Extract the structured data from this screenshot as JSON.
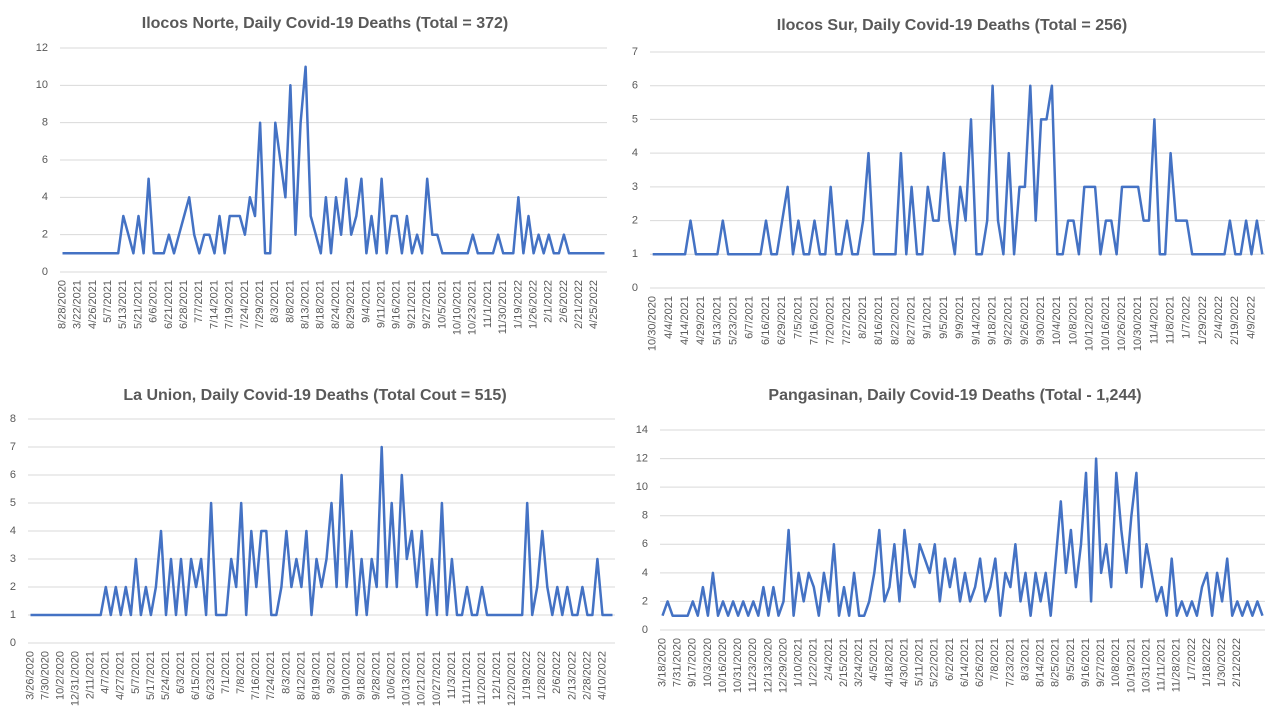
{
  "chart_data": [
    {
      "type": "line",
      "title": "Ilocos Norte, Daily Covid-19 Deaths (Total = 372)",
      "color": "#4472c4",
      "grid": true,
      "ylim": [
        0,
        12
      ],
      "yticks": [
        0,
        2,
        4,
        6,
        8,
        10,
        12
      ],
      "categories": [
        "8/28/2020",
        null,
        null,
        "3/22/2021",
        null,
        null,
        "4/26/2021",
        null,
        null,
        "5/7/2021",
        null,
        null,
        "5/13/2021",
        null,
        null,
        "5/21/2021",
        null,
        null,
        "6/6/2021",
        null,
        null,
        "6/21/2021",
        null,
        null,
        "6/28/2021",
        null,
        null,
        "7/7/2021",
        null,
        null,
        "7/14/2021",
        null,
        null,
        "7/19/2021",
        null,
        null,
        "7/24/2021",
        null,
        null,
        "7/29/2021",
        null,
        null,
        "8/3/2021",
        null,
        null,
        "8/8/2021",
        null,
        null,
        "8/13/2021",
        null,
        null,
        "8/18/2021",
        null,
        null,
        "8/24/2021",
        null,
        null,
        "8/29/2021",
        null,
        null,
        "9/4/2021",
        null,
        null,
        "9/11/2021",
        null,
        null,
        "9/16/2021",
        null,
        null,
        "9/21/2021",
        null,
        null,
        "9/27/2021",
        null,
        null,
        "10/5/2021",
        null,
        null,
        "10/10/2021",
        null,
        null,
        "10/23/2021",
        null,
        null,
        "11/1/2021",
        null,
        null,
        "11/30/2021",
        null,
        null,
        "1/19/2022",
        null,
        null,
        "1/26/2022",
        null,
        null,
        "2/1/2022",
        null,
        null,
        "2/6/2022",
        null,
        null,
        "2/21/2022",
        null,
        null,
        "4/25/2022",
        null,
        null
      ],
      "values": [
        1,
        1,
        1,
        1,
        1,
        1,
        1,
        1,
        1,
        1,
        1,
        1,
        3,
        2,
        1,
        3,
        1,
        5,
        1,
        1,
        1,
        2,
        1,
        2,
        3,
        4,
        2,
        1,
        2,
        2,
        1,
        3,
        1,
        3,
        3,
        3,
        2,
        4,
        3,
        8,
        1,
        1,
        8,
        6,
        4,
        10,
        2,
        8,
        11,
        3,
        2,
        1,
        4,
        1,
        4,
        2,
        5,
        2,
        3,
        5,
        1,
        3,
        1,
        5,
        1,
        3,
        3,
        1,
        3,
        1,
        2,
        1,
        5,
        2,
        2,
        1,
        1,
        1,
        1,
        1,
        1,
        2,
        1,
        1,
        1,
        1,
        2,
        1,
        1,
        1,
        4,
        1,
        3,
        1,
        2,
        1,
        2,
        1,
        1,
        2,
        1,
        1,
        1,
        1,
        1,
        1,
        1,
        1
      ]
    },
    {
      "type": "line",
      "title": "Ilocos Sur, Daily Covid-19 Deaths (Total = 256)",
      "color": "#4472c4",
      "grid": true,
      "ylim": [
        0,
        7
      ],
      "yticks": [
        0,
        1,
        2,
        3,
        4,
        5,
        6,
        7
      ],
      "categories": [
        "10/30/2020",
        null,
        null,
        "4/4/2021",
        null,
        null,
        "4/14/2021",
        null,
        null,
        "4/29/2021",
        null,
        null,
        "5/13/2021",
        null,
        null,
        "5/23/2021",
        null,
        null,
        "6/7/2021",
        null,
        null,
        "6/16/2021",
        null,
        null,
        "6/29/2021",
        null,
        null,
        "7/5/2021",
        null,
        null,
        "7/16/2021",
        null,
        null,
        "7/20/2021",
        null,
        null,
        "7/27/2021",
        null,
        null,
        "8/2/2021",
        null,
        null,
        "8/16/2021",
        null,
        null,
        "8/22/2021",
        null,
        null,
        "8/27/2021",
        null,
        null,
        "9/1/2021",
        null,
        null,
        "9/5/2021",
        null,
        null,
        "9/9/2021",
        null,
        null,
        "9/14/2021",
        null,
        null,
        "9/18/2021",
        null,
        null,
        "9/22/2021",
        null,
        null,
        "9/26/2021",
        null,
        null,
        "9/30/2021",
        null,
        null,
        "10/4/2021",
        null,
        null,
        "10/8/2021",
        null,
        null,
        "10/12/2021",
        null,
        null,
        "10/16/2021",
        null,
        null,
        "10/26/2021",
        null,
        null,
        "10/30/2021",
        null,
        null,
        "11/4/2021",
        null,
        null,
        "11/8/2021",
        null,
        null,
        "1/7/2022",
        null,
        null,
        "1/29/2022",
        null,
        null,
        "2/4/2022",
        null,
        null,
        "2/19/2022",
        null,
        null,
        "4/9/2022",
        null,
        null
      ],
      "values": [
        1,
        1,
        1,
        1,
        1,
        1,
        1,
        2,
        1,
        1,
        1,
        1,
        1,
        2,
        1,
        1,
        1,
        1,
        1,
        1,
        1,
        2,
        1,
        1,
        2,
        3,
        1,
        2,
        1,
        1,
        2,
        1,
        1,
        3,
        1,
        1,
        2,
        1,
        1,
        2,
        4,
        1,
        1,
        1,
        1,
        1,
        4,
        1,
        3,
        1,
        1,
        3,
        2,
        2,
        4,
        2,
        1,
        3,
        2,
        5,
        1,
        1,
        2,
        6,
        2,
        1,
        4,
        1,
        3,
        3,
        6,
        2,
        5,
        5,
        6,
        1,
        1,
        2,
        2,
        1,
        3,
        3,
        3,
        1,
        2,
        2,
        1,
        3,
        3,
        3,
        3,
        2,
        2,
        5,
        1,
        1,
        4,
        2,
        2,
        2,
        1,
        1,
        1,
        1,
        1,
        1,
        1,
        2,
        1,
        1,
        2,
        1,
        2,
        1
      ]
    },
    {
      "type": "line",
      "title": "La Union, Daily Covid-19 Deaths (Total Cout = 515)",
      "color": "#4472c4",
      "grid": true,
      "ylim": [
        0,
        8
      ],
      "yticks": [
        0,
        1,
        2,
        3,
        4,
        5,
        6,
        7,
        8
      ],
      "categories": [
        "3/26/2020",
        null,
        null,
        "7/30/2020",
        null,
        null,
        "10/2/2020",
        null,
        null,
        "12/31/2020",
        null,
        null,
        "2/11/2021",
        null,
        null,
        "4/7/2021",
        null,
        null,
        "4/27/2021",
        null,
        null,
        "5/7/2021",
        null,
        null,
        "5/17/2021",
        null,
        null,
        "5/24/2021",
        null,
        null,
        "6/3/2021",
        null,
        null,
        "6/15/2021",
        null,
        null,
        "6/23/2021",
        null,
        null,
        "7/1/2021",
        null,
        null,
        "7/8/2021",
        null,
        null,
        "7/16/2021",
        null,
        null,
        "7/24/2021",
        null,
        null,
        "8/3/2021",
        null,
        null,
        "8/12/2021",
        null,
        null,
        "8/19/2021",
        null,
        null,
        "9/3/2021",
        null,
        null,
        "9/10/2021",
        null,
        null,
        "9/18/2021",
        null,
        null,
        "9/28/2021",
        null,
        null,
        "10/6/2021",
        null,
        null,
        "10/13/2021",
        null,
        null,
        "10/21/2021",
        null,
        null,
        "10/27/2021",
        null,
        null,
        "11/3/2021",
        null,
        null,
        "11/11/2021",
        null,
        null,
        "11/20/2021",
        null,
        null,
        "12/1/2021",
        null,
        null,
        "12/20/2021",
        null,
        null,
        "1/19/2022",
        null,
        null,
        "1/28/2022",
        null,
        null,
        "2/6/2022",
        null,
        null,
        "2/13/2022",
        null,
        null,
        "2/28/2022",
        null,
        null,
        "4/10/2022",
        null,
        null
      ],
      "values": [
        1,
        1,
        1,
        1,
        1,
        1,
        1,
        1,
        1,
        1,
        1,
        1,
        1,
        1,
        1,
        2,
        1,
        2,
        1,
        2,
        1,
        3,
        1,
        2,
        1,
        2,
        4,
        1,
        3,
        1,
        3,
        1,
        3,
        2,
        3,
        1,
        5,
        1,
        1,
        1,
        3,
        2,
        5,
        1,
        4,
        2,
        4,
        4,
        1,
        1,
        2,
        4,
        2,
        3,
        2,
        4,
        1,
        3,
        2,
        3,
        5,
        2,
        6,
        2,
        4,
        1,
        3,
        1,
        3,
        2,
        7,
        2,
        5,
        2,
        6,
        3,
        4,
        2,
        4,
        1,
        3,
        1,
        5,
        1,
        3,
        1,
        1,
        2,
        1,
        1,
        2,
        1,
        1,
        1,
        1,
        1,
        1,
        1,
        1,
        5,
        1,
        2,
        4,
        2,
        1,
        2,
        1,
        2,
        1,
        1,
        2,
        1,
        1,
        3,
        1,
        1,
        1
      ]
    },
    {
      "type": "line",
      "title": "Pangasinan, Daily Covid-19 Deaths (Total - 1,244)",
      "color": "#4472c4",
      "grid": true,
      "ylim": [
        0,
        14
      ],
      "yticks": [
        0,
        2,
        4,
        6,
        8,
        10,
        12,
        14
      ],
      "categories": [
        "3/18/2020",
        null,
        null,
        "7/31/2020",
        null,
        null,
        "9/17/2020",
        null,
        null,
        "10/3/2020",
        null,
        null,
        "10/16/2020",
        null,
        null,
        "10/31/2020",
        null,
        null,
        "11/23/2020",
        null,
        null,
        "12/13/2020",
        null,
        null,
        "12/29/2020",
        null,
        null,
        "1/10/2021",
        null,
        null,
        "1/22/2021",
        null,
        null,
        "2/4/2021",
        null,
        null,
        "2/15/2021",
        null,
        null,
        "3/24/2021",
        null,
        null,
        "4/5/2021",
        null,
        null,
        "4/18/2021",
        null,
        null,
        "4/30/2021",
        null,
        null,
        "5/11/2021",
        null,
        null,
        "5/22/2021",
        null,
        null,
        "6/2/2021",
        null,
        null,
        "6/14/2021",
        null,
        null,
        "6/26/2021",
        null,
        null,
        "7/8/2021",
        null,
        null,
        "7/23/2021",
        null,
        null,
        "8/3/2021",
        null,
        null,
        "8/14/2021",
        null,
        null,
        "8/25/2021",
        null,
        null,
        "9/5/2021",
        null,
        null,
        "9/16/2021",
        null,
        null,
        "9/27/2021",
        null,
        null,
        "10/8/2021",
        null,
        null,
        "10/19/2021",
        null,
        null,
        "10/31/2021",
        null,
        null,
        "11/11/2021",
        null,
        null,
        "11/28/2021",
        null,
        null,
        "1/7/2022",
        null,
        null,
        "1/18/2022",
        null,
        null,
        "1/30/2022",
        null,
        null,
        "2/12/2022",
        null,
        null,
        null,
        null,
        null
      ],
      "values": [
        1,
        2,
        1,
        1,
        1,
        1,
        2,
        1,
        3,
        1,
        4,
        1,
        2,
        1,
        2,
        1,
        2,
        1,
        2,
        1,
        3,
        1,
        3,
        1,
        2,
        7,
        1,
        4,
        2,
        4,
        3,
        1,
        4,
        2,
        6,
        1,
        3,
        1,
        4,
        1,
        1,
        2,
        4,
        7,
        2,
        3,
        6,
        2,
        7,
        4,
        3,
        6,
        5,
        4,
        6,
        2,
        5,
        3,
        5,
        2,
        4,
        2,
        3,
        5,
        2,
        3,
        5,
        1,
        4,
        3,
        6,
        2,
        4,
        1,
        4,
        2,
        4,
        1,
        5,
        9,
        4,
        7,
        3,
        6,
        11,
        2,
        12,
        4,
        6,
        3,
        11,
        7,
        4,
        8,
        11,
        3,
        6,
        4,
        2,
        3,
        1,
        5,
        1,
        2,
        1,
        2,
        1,
        3,
        4,
        1,
        4,
        2,
        5,
        1,
        2,
        1,
        2,
        1,
        2,
        1
      ]
    }
  ]
}
